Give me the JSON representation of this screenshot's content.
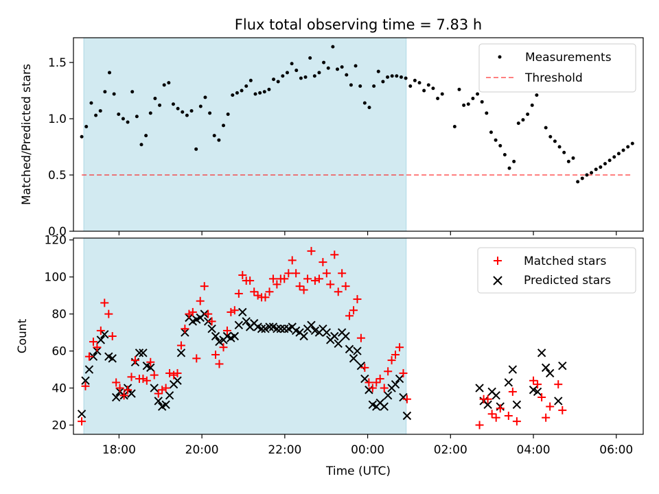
{
  "title": "Flux total observing time = 7.83 h",
  "colors": {
    "shade": "#add8e6",
    "measurement": "#000000",
    "threshold": "#ff0000",
    "matched": "#ff0000",
    "predicted": "#000000"
  },
  "chart_data": [
    {
      "type": "scatter",
      "ylabel": "Matched/Predicted stars",
      "ylim": [
        0,
        1.72
      ],
      "yticks": [
        "0.0",
        "0.5",
        "1.0",
        "1.5"
      ],
      "xlim": [
        16.9,
        30.65
      ],
      "shaded_interval": [
        17.15,
        24.93
      ],
      "legend": {
        "position": "top-right",
        "entries": [
          "Measurements",
          "Threshold"
        ]
      },
      "threshold": {
        "name": "Threshold",
        "value": 0.5,
        "x_range": [
          17.1,
          30.4
        ]
      },
      "series": [
        {
          "name": "Measurements",
          "x": [
            17.1,
            17.21,
            17.33,
            17.44,
            17.55,
            17.66,
            17.77,
            17.88,
            17.99,
            18.1,
            18.21,
            18.32,
            18.43,
            18.54,
            18.65,
            18.76,
            18.87,
            18.98,
            19.09,
            19.2,
            19.31,
            19.42,
            19.53,
            19.64,
            19.75,
            19.86,
            19.97,
            20.08,
            20.19,
            20.3,
            20.41,
            20.52,
            20.63,
            20.74,
            20.85,
            20.96,
            21.07,
            21.18,
            21.29,
            21.4,
            21.51,
            21.62,
            21.73,
            21.84,
            21.95,
            22.06,
            22.17,
            22.28,
            22.39,
            22.5,
            22.61,
            22.72,
            22.83,
            22.94,
            23.05,
            23.16,
            23.27,
            23.38,
            23.49,
            23.6,
            23.71,
            23.82,
            23.93,
            24.04,
            24.15,
            24.26,
            24.37,
            24.48,
            24.59,
            24.7,
            24.81,
            24.92,
            25.03,
            25.14,
            25.25,
            25.36,
            25.47,
            25.58,
            25.69,
            25.8,
            26.1,
            26.21,
            26.32,
            26.43,
            26.54,
            26.65,
            26.76,
            26.87,
            26.98,
            27.09,
            27.2,
            27.31,
            27.42,
            27.53,
            27.64,
            27.75,
            27.86,
            27.97,
            28.08,
            28.19,
            28.3,
            28.41,
            28.52,
            28.63,
            28.74,
            28.85,
            28.96,
            29.07,
            29.18,
            29.29,
            29.4,
            29.51,
            29.62,
            29.73,
            29.84,
            29.95,
            30.06,
            30.17,
            30.28,
            30.39
          ],
          "y": [
            0.84,
            0.93,
            1.14,
            1.03,
            1.07,
            1.24,
            1.41,
            1.22,
            1.04,
            1.0,
            0.97,
            1.24,
            1.02,
            0.77,
            0.85,
            1.05,
            1.18,
            1.12,
            1.3,
            1.32,
            1.13,
            1.09,
            1.06,
            1.03,
            1.07,
            0.73,
            1.11,
            1.19,
            1.05,
            0.85,
            0.81,
            0.94,
            1.04,
            1.21,
            1.23,
            1.25,
            1.29,
            1.34,
            1.22,
            1.23,
            1.24,
            1.26,
            1.35,
            1.33,
            1.38,
            1.41,
            1.49,
            1.43,
            1.36,
            1.37,
            1.54,
            1.38,
            1.41,
            1.5,
            1.45,
            1.64,
            1.44,
            1.46,
            1.39,
            1.3,
            1.47,
            1.29,
            1.14,
            1.1,
            1.29,
            1.42,
            1.33,
            1.37,
            1.38,
            1.38,
            1.37,
            1.36,
            1.29,
            1.34,
            1.32,
            1.25,
            1.3,
            1.27,
            1.18,
            1.22,
            0.93,
            1.26,
            1.12,
            1.13,
            1.18,
            1.22,
            1.15,
            1.05,
            0.88,
            0.81,
            0.76,
            0.68,
            0.56,
            0.62,
            0.96,
            0.99,
            1.04,
            1.12,
            1.21,
            1.28,
            0.92,
            0.84,
            0.8,
            0.75,
            0.7,
            0.62,
            0.65,
            0.44,
            0.47,
            0.5,
            0.52,
            0.55,
            0.57,
            0.6,
            0.63,
            0.66,
            0.69,
            0.72,
            0.75,
            0.78
          ],
          "marker": "dot"
        }
      ]
    },
    {
      "type": "scatter",
      "xlabel": "Time (UTC)",
      "ylabel": "Count",
      "ylim": [
        15,
        121
      ],
      "yticks": [
        "20",
        "40",
        "60",
        "80",
        "100",
        "120"
      ],
      "xlim": [
        16.9,
        30.65
      ],
      "xticks": [
        "18:00",
        "20:00",
        "22:00",
        "00:00",
        "02:00",
        "04:00",
        "06:00"
      ],
      "shaded_interval": [
        17.15,
        24.93
      ],
      "legend": {
        "position": "top-right",
        "entries": [
          "Matched stars",
          "Predicted stars"
        ]
      },
      "series": [
        {
          "name": "Matched stars",
          "marker": "plus",
          "x": [],
          "y": []
        },
        {
          "name": "Predicted stars",
          "marker": "x",
          "x": [],
          "y": []
        }
      ]
    }
  ]
}
